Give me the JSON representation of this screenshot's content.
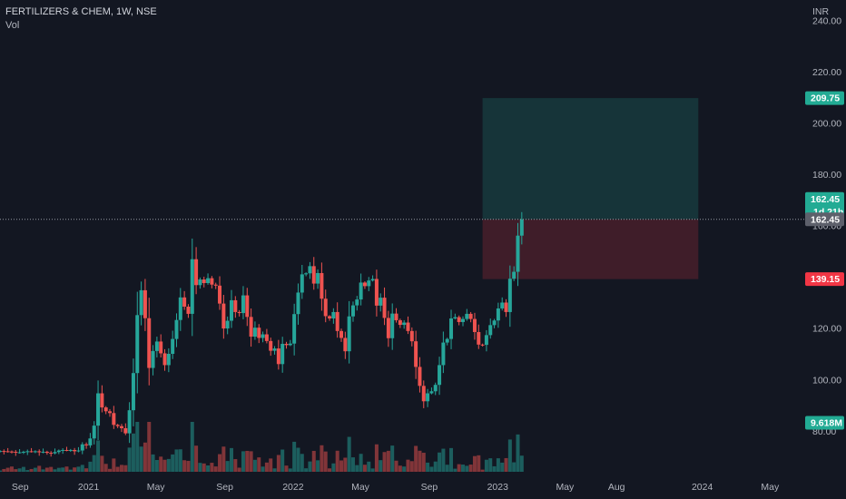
{
  "header": {
    "title": "FERTILIZERS & CHEM, 1W, NSE",
    "volume_label": "Vol",
    "currency": "INR"
  },
  "price_tags": {
    "target": {
      "text": "209.75",
      "value": 209.75,
      "color": "#22ab94"
    },
    "last": {
      "text": "162.45",
      "sub": "1d 21h",
      "value": 162.45,
      "color": "#22ab94"
    },
    "crosshair": {
      "text": "162.45",
      "value": 162.45,
      "color": "#5d606b"
    },
    "stop": {
      "text": "139.15",
      "value": 139.15,
      "color": "#f23645"
    },
    "volume": {
      "text": "9.618M",
      "color": "#22ab94"
    }
  },
  "chart_data": {
    "type": "candlestick",
    "title": "FERTILIZERS & CHEM, 1W, NSE",
    "currency": "INR",
    "yticks": [
      80,
      100,
      120,
      140,
      160,
      180,
      200,
      220,
      240
    ],
    "ytick_labels": [
      "80.00",
      "100.00",
      "120.00",
      "140.00",
      "160.00",
      "180.00",
      "200.00",
      "220.00",
      "240.00"
    ],
    "ylim": [
      64,
      248
    ],
    "xticks": [
      {
        "label": "Sep",
        "date": "2020-09-01"
      },
      {
        "label": "2021",
        "date": "2021-01-01"
      },
      {
        "label": "May",
        "date": "2021-05-01"
      },
      {
        "label": "Sep",
        "date": "2021-09-01"
      },
      {
        "label": "2022",
        "date": "2022-01-01"
      },
      {
        "label": "May",
        "date": "2022-05-01"
      },
      {
        "label": "Sep",
        "date": "2022-09-01"
      },
      {
        "label": "2023",
        "date": "2023-01-01"
      },
      {
        "label": "May",
        "date": "2023-05-01"
      },
      {
        "label": "Aug",
        "date": "2023-08-01"
      },
      {
        "label": "2024",
        "date": "2024-01-01"
      },
      {
        "label": "May",
        "date": "2024-05-01"
      }
    ],
    "x_start": "2020-07-27",
    "x_end": "2024-07-01",
    "position": {
      "type": "long",
      "entry": 162.45,
      "target": 209.75,
      "stop": 139.15,
      "start": "2022-12-05",
      "end": "2023-12-25"
    },
    "close_series": [
      72.1,
      72.0,
      71.9,
      71.8,
      71.5,
      71.6,
      71.8,
      72.0,
      71.9,
      72.0,
      71.6,
      71.8,
      71.4,
      71.2,
      71.7,
      72.3,
      72.5,
      72.4,
      72.5,
      72.0,
      72.3,
      74.7,
      74.3,
      77.0,
      82.0,
      94.6,
      89.1,
      87.6,
      86.9,
      82.3,
      81.8,
      81.0,
      79.0,
      88.0,
      102.5,
      125.1,
      134.8,
      123.9,
      104.5,
      111.1,
      114.8,
      110.2,
      105.6,
      110.0,
      115.8,
      123.2,
      132.0,
      128.4,
      125.6,
      146.9,
      136.8,
      139.0,
      137.6,
      139.5,
      137.0,
      136.6,
      129.6,
      119.9,
      122.9,
      130.9,
      126.3,
      125.9,
      132.8,
      124.4,
      116.7,
      120.2,
      116.2,
      117.6,
      115.0,
      111.2,
      112.1,
      106.0,
      113.9,
      113.4,
      114.0,
      125.5,
      133.9,
      141.0,
      141.4,
      144.2,
      137.4,
      141.5,
      131.5,
      124.7,
      123.8,
      126.3,
      118.9,
      116.2,
      111.0,
      124.6,
      128.9,
      131.2,
      137.8,
      136.4,
      138.6,
      139.2,
      128.8,
      131.9,
      124.0,
      116.1,
      125.7,
      123.1,
      121.3,
      122.2,
      118.9,
      114.9,
      104.9,
      97.5,
      91.5,
      94.6,
      95.4,
      97.9,
      105.6,
      114.4,
      115.8,
      123.8,
      124.3,
      122.4,
      123.6,
      125.6,
      123.6,
      118.5,
      113.6,
      113.5,
      117.3,
      121.2,
      123.0,
      127.7,
      130.0,
      126.3,
      139.3,
      142.0,
      156.1,
      162.45
    ],
    "volume_unit": "M",
    "volume_last": 9.618
  }
}
